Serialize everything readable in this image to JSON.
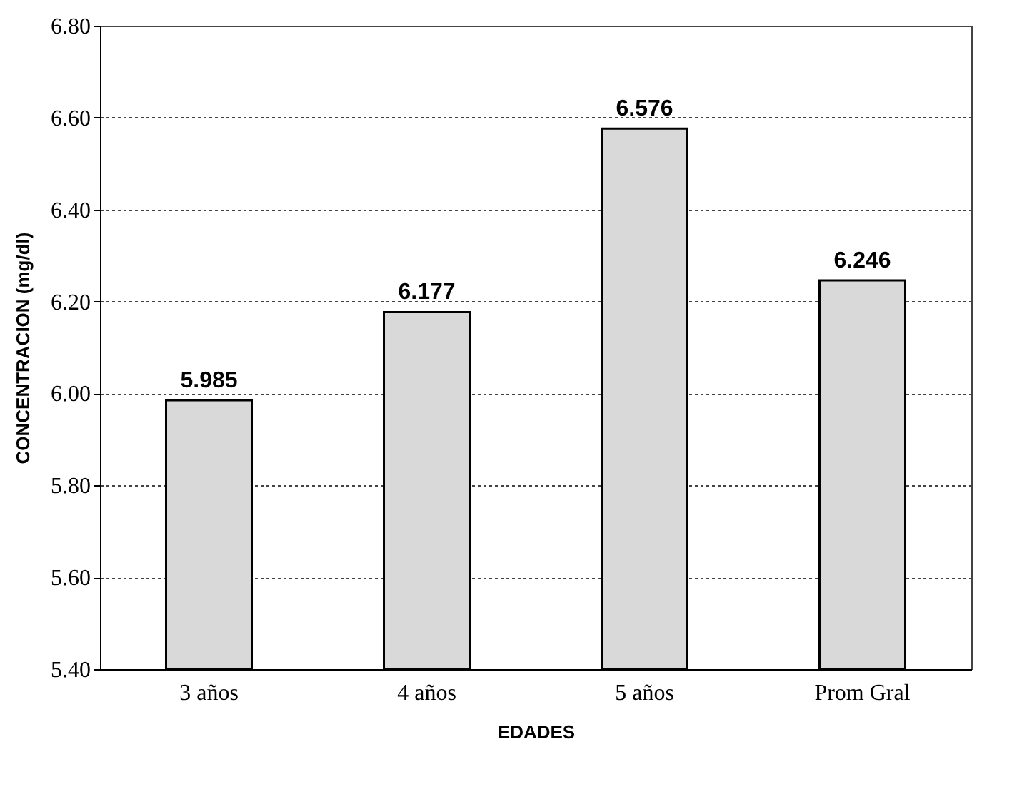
{
  "chart_data": {
    "type": "bar",
    "xlabel": "EDADES",
    "ylabel": "CONCENTRACION (mg/dl)",
    "categories": [
      "3 años",
      "4 años",
      "5 años",
      "Prom Gral"
    ],
    "values": [
      5.985,
      6.177,
      6.576,
      6.246
    ],
    "color": "#d9d9d9",
    "ylim": [
      5.4,
      6.8
    ],
    "yticks": [
      {
        "value": 5.4,
        "label": "5.40"
      },
      {
        "value": 5.6,
        "label": "5.60"
      },
      {
        "value": 5.8,
        "label": "5.80"
      },
      {
        "value": 6.0,
        "label": "6.00"
      },
      {
        "value": 6.2,
        "label": "6.20"
      },
      {
        "value": 6.4,
        "label": "6.40"
      },
      {
        "value": 6.6,
        "label": "6.60"
      },
      {
        "value": 6.8,
        "label": "6.80"
      }
    ],
    "data_labels": true,
    "grid": "y"
  }
}
